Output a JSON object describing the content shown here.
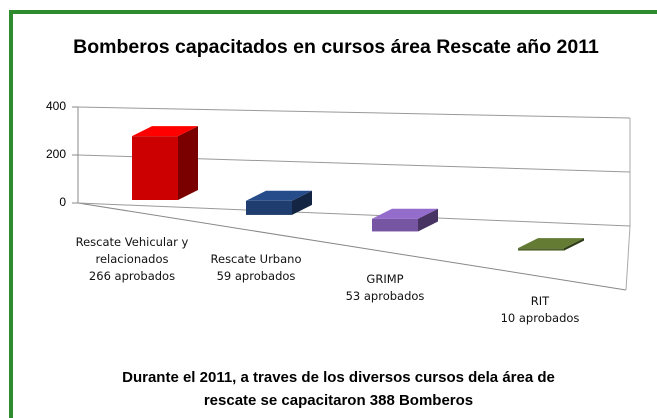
{
  "chart_data": {
    "type": "bar3d",
    "title": "Bomberos capacitados en cursos área Rescate año 2011",
    "categories": [
      "Rescate Vehicular y\nrelacionados\n266 aprobados",
      "Rescate Urbano\n59 aprobados",
      "GRIMP\n53 aprobados",
      "RIT\n10 aprobados"
    ],
    "values": [
      266,
      59,
      53,
      10
    ],
    "colors": [
      "#cc0000",
      "#1f3d6e",
      "#7656a3",
      "#4f6228"
    ],
    "ylim": [
      0,
      400
    ],
    "yticks": [
      0,
      200,
      400
    ],
    "grid": true,
    "annotation": "Durante el 2011, a traves de los diversos cursos dela área de\nrescate se capacitaron 388 Bomberos"
  }
}
